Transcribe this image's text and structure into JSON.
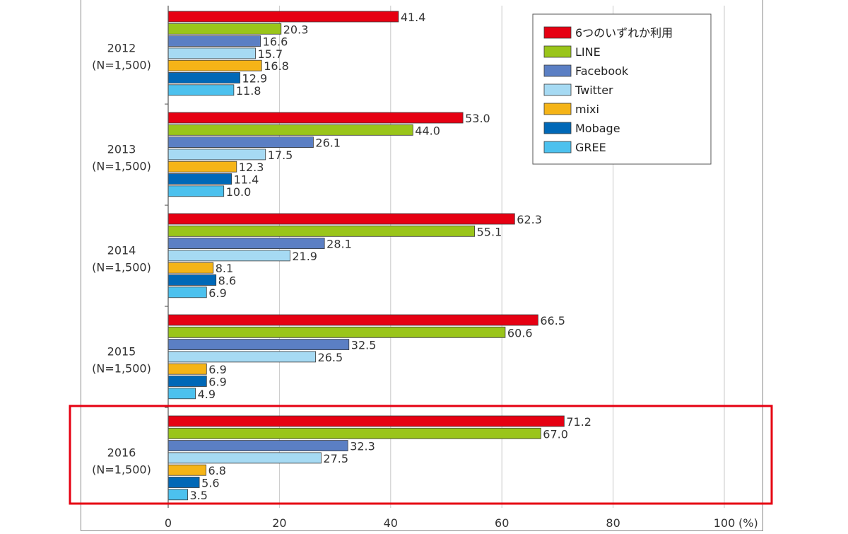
{
  "chart_data": {
    "type": "bar",
    "orientation": "horizontal",
    "categories": [
      [
        "2012",
        "(N=1,500)"
      ],
      [
        "2013",
        "(N=1,500)"
      ],
      [
        "2014",
        "(N=1,500)"
      ],
      [
        "2015",
        "(N=1,500)"
      ],
      [
        "2016",
        "(N=1,500)"
      ]
    ],
    "series": [
      {
        "name": "6つのいずれか利用",
        "color": "#e60012",
        "values": [
          41.4,
          53.0,
          62.3,
          66.5,
          71.2
        ]
      },
      {
        "name": "LINE",
        "color": "#9ac51a",
        "values": [
          20.3,
          44.0,
          55.1,
          60.6,
          67.0
        ]
      },
      {
        "name": "Facebook",
        "color": "#5b7fc4",
        "values": [
          16.6,
          26.1,
          28.1,
          32.5,
          32.3
        ]
      },
      {
        "name": "Twitter",
        "color": "#a6daf3",
        "values": [
          15.7,
          17.5,
          21.9,
          26.5,
          27.5
        ]
      },
      {
        "name": "mixi",
        "color": "#f5b417",
        "values": [
          16.8,
          12.3,
          8.1,
          6.9,
          6.8
        ]
      },
      {
        "name": "Mobage",
        "color": "#0068b7",
        "values": [
          12.9,
          11.4,
          8.6,
          6.9,
          5.6
        ]
      },
      {
        "name": "GREE",
        "color": "#4cc1ee",
        "values": [
          11.8,
          10.0,
          6.9,
          4.9,
          3.5
        ]
      }
    ],
    "xlim": [
      0,
      100
    ],
    "xticks": [
      "0",
      "20",
      "40",
      "60",
      "80",
      "100"
    ],
    "xunit": "(%)",
    "grid": true,
    "legend": "top-right",
    "highlight_category": "2016",
    "highlight_color": "#e60012"
  }
}
